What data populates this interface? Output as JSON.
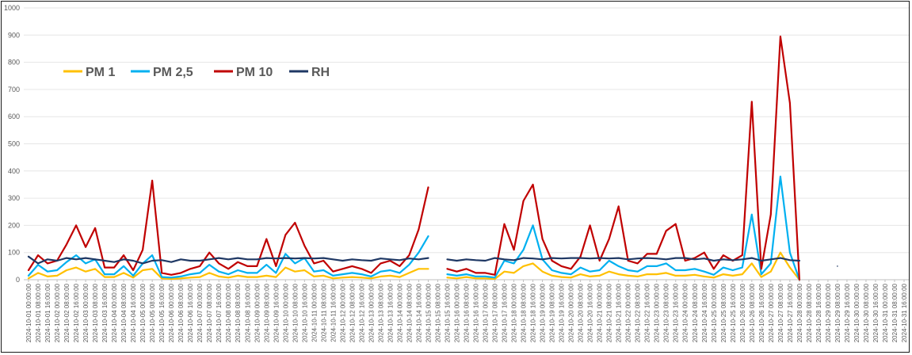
{
  "chart_data": {
    "type": "line",
    "title": "",
    "xlabel": "",
    "ylabel": "",
    "ylim": [
      0,
      1000
    ],
    "yticks": [
      0,
      100,
      200,
      300,
      400,
      500,
      600,
      700,
      800,
      900,
      1000
    ],
    "grid": "horizontal",
    "legend_position": "top-left",
    "x": [
      "2024-10-01 00:00:00",
      "2024-10-01 08:00:00",
      "2024-10-01 16:00:00",
      "2024-10-02 00:00:00",
      "2024-10-02 08:00:00",
      "2024-10-02 16:00:00",
      "2024-10-03 00:00:00",
      "2024-10-03 08:00:00",
      "2024-10-03 16:00:00",
      "2024-10-04 00:00:00",
      "2024-10-04 08:00:00",
      "2024-10-04 16:00:00",
      "2024-10-05 00:00:00",
      "2024-10-05 08:00:00",
      "2024-10-05 16:00:00",
      "2024-10-06 00:00:00",
      "2024-10-06 08:00:00",
      "2024-10-06 16:00:00",
      "2024-10-07 00:00:00",
      "2024-10-07 08:00:00",
      "2024-10-07 16:00:00",
      "2024-10-08 00:00:00",
      "2024-10-08 08:00:00",
      "2024-10-08 16:00:00",
      "2024-10-09 00:00:00",
      "2024-10-09 08:00:00",
      "2024-10-09 16:00:00",
      "2024-10-10 00:00:00",
      "2024-10-10 08:00:00",
      "2024-10-10 16:00:00",
      "2024-10-11 00:00:00",
      "2024-10-11 08:00:00",
      "2024-10-11 16:00:00",
      "2024-10-12 00:00:00",
      "2024-10-12 08:00:00",
      "2024-10-12 16:00:00",
      "2024-10-13 00:00:00",
      "2024-10-13 08:00:00",
      "2024-10-13 16:00:00",
      "2024-10-14 00:00:00",
      "2024-10-14 08:00:00",
      "2024-10-14 16:00:00",
      "2024-10-15 00:00:00",
      "2024-10-15 08:00:00",
      "2024-10-15 16:00:00",
      "2024-10-16 00:00:00",
      "2024-10-16 08:00:00",
      "2024-10-16 16:00:00",
      "2024-10-17 00:00:00",
      "2024-10-17 08:00:00",
      "2024-10-17 16:00:00",
      "2024-10-18 00:00:00",
      "2024-10-18 08:00:00",
      "2024-10-18 16:00:00",
      "2024-10-19 00:00:00",
      "2024-10-19 08:00:00",
      "2024-10-19 16:00:00",
      "2024-10-20 00:00:00",
      "2024-10-20 08:00:00",
      "2024-10-20 16:00:00",
      "2024-10-21 00:00:00",
      "2024-10-21 08:00:00",
      "2024-10-21 16:00:00",
      "2024-10-22 00:00:00",
      "2024-10-22 08:00:00",
      "2024-10-22 16:00:00",
      "2024-10-23 00:00:00",
      "2024-10-23 08:00:00",
      "2024-10-23 16:00:00",
      "2024-10-24 00:00:00",
      "2024-10-24 08:00:00",
      "2024-10-24 16:00:00",
      "2024-10-25 00:00:00",
      "2024-10-25 08:00:00",
      "2024-10-25 16:00:00",
      "2024-10-26 00:00:00",
      "2024-10-26 08:00:00",
      "2024-10-26 16:00:00",
      "2024-10-27 00:00:00",
      "2024-10-27 08:00:00",
      "2024-10-27 16:00:00",
      "2024-10-28 00:00:00",
      "2024-10-28 08:00:00",
      "2024-10-28 16:00:00",
      "2024-10-29 00:00:00",
      "2024-10-29 08:00:00",
      "2024-10-29 16:00:00",
      "2024-10-30 00:00:00",
      "2024-10-30 08:00:00",
      "2024-10-30 16:00:00",
      "2024-10-31 00:00:00",
      "2024-10-31 08:00:00",
      "2024-10-31 16:00:00"
    ],
    "series": [
      {
        "name": "PM 1",
        "color": "#FFC000",
        "values": [
          5,
          25,
          12,
          15,
          35,
          45,
          30,
          40,
          10,
          10,
          25,
          8,
          35,
          40,
          5,
          3,
          5,
          8,
          10,
          25,
          12,
          8,
          15,
          10,
          10,
          15,
          10,
          45,
          30,
          35,
          12,
          15,
          5,
          8,
          10,
          8,
          5,
          12,
          15,
          10,
          25,
          40,
          40,
          null,
          8,
          5,
          10,
          5,
          5,
          3,
          30,
          25,
          50,
          60,
          30,
          15,
          10,
          8,
          20,
          12,
          15,
          30,
          20,
          15,
          12,
          20,
          20,
          25,
          15,
          15,
          18,
          12,
          8,
          20,
          15,
          20,
          60,
          10,
          30,
          100,
          45,
          0,
          null,
          null,
          null,
          null,
          null,
          null,
          null,
          null,
          null,
          null,
          null
        ]
      },
      {
        "name": "PM 2,5",
        "color": "#00B0F0",
        "values": [
          15,
          55,
          30,
          35,
          65,
          90,
          60,
          75,
          20,
          20,
          50,
          15,
          60,
          90,
          10,
          8,
          12,
          20,
          25,
          55,
          30,
          20,
          35,
          25,
          25,
          55,
          25,
          95,
          60,
          80,
          30,
          35,
          15,
          20,
          25,
          20,
          12,
          30,
          35,
          25,
          55,
          100,
          160,
          null,
          20,
          15,
          20,
          12,
          12,
          8,
          70,
          60,
          110,
          200,
          75,
          35,
          25,
          20,
          45,
          30,
          35,
          70,
          50,
          35,
          30,
          50,
          50,
          60,
          35,
          35,
          40,
          30,
          18,
          45,
          35,
          45,
          240,
          20,
          60,
          380,
          100,
          0,
          null,
          null,
          null,
          null,
          null,
          null,
          null,
          null,
          null,
          null,
          null
        ]
      },
      {
        "name": "PM 10",
        "color": "#C00000",
        "values": [
          35,
          90,
          60,
          70,
          130,
          200,
          120,
          190,
          45,
          45,
          90,
          35,
          110,
          365,
          25,
          18,
          25,
          40,
          50,
          100,
          60,
          40,
          65,
          50,
          50,
          150,
          50,
          165,
          210,
          125,
          60,
          70,
          30,
          40,
          50,
          40,
          25,
          60,
          70,
          50,
          90,
          185,
          340,
          null,
          40,
          30,
          40,
          25,
          25,
          18,
          205,
          110,
          290,
          350,
          150,
          70,
          50,
          40,
          85,
          200,
          70,
          150,
          270,
          70,
          60,
          95,
          95,
          180,
          205,
          70,
          80,
          100,
          40,
          90,
          70,
          90,
          655,
          40,
          240,
          895,
          650,
          0,
          null,
          null,
          null,
          null,
          null,
          null,
          null,
          null,
          null,
          null,
          null
        ]
      },
      {
        "name": "RH",
        "color": "#1F3864",
        "values": [
          85,
          60,
          75,
          70,
          80,
          75,
          80,
          75,
          70,
          65,
          75,
          70,
          60,
          70,
          72,
          65,
          75,
          70,
          70,
          75,
          80,
          75,
          80,
          75,
          75,
          80,
          78,
          80,
          78,
          80,
          78,
          80,
          75,
          70,
          75,
          72,
          70,
          78,
          75,
          72,
          78,
          75,
          80,
          null,
          75,
          70,
          75,
          72,
          70,
          80,
          75,
          72,
          80,
          78,
          75,
          80,
          78,
          80,
          80,
          78,
          80,
          78,
          80,
          75,
          78,
          80,
          78,
          75,
          80,
          80,
          75,
          78,
          70,
          75,
          72,
          75,
          80,
          70,
          75,
          80,
          72,
          70,
          null,
          null,
          null,
          50,
          null,
          null,
          null,
          null,
          null,
          null,
          null
        ]
      }
    ]
  }
}
